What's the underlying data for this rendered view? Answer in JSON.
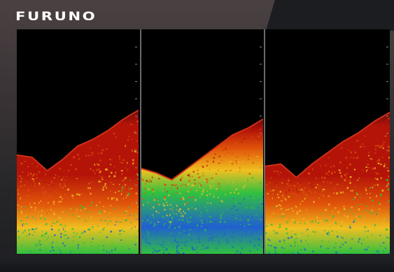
{
  "header": {
    "logo_text": "FURUNO"
  },
  "display": {
    "panels": [
      {
        "id": "left",
        "seabed": [
          0.56,
          0.57,
          0.63,
          0.58,
          0.52,
          0.49,
          0.45,
          0.4,
          0.36
        ]
      },
      {
        "id": "center",
        "seabed": [
          0.62,
          0.64,
          0.67,
          0.62,
          0.57,
          0.52,
          0.47,
          0.44,
          0.4
        ]
      },
      {
        "id": "right",
        "seabed": [
          0.61,
          0.6,
          0.66,
          0.6,
          0.55,
          0.5,
          0.46,
          0.41,
          0.37
        ]
      }
    ],
    "colors": {
      "water": "#000000",
      "seabed_edge": "#6a0a0a",
      "echo_strong": "#b41408",
      "echo_mid": "#e0540a",
      "echo_weak": "#f0c020",
      "echo_low": "#30c040",
      "echo_min": "#2060d0"
    }
  }
}
